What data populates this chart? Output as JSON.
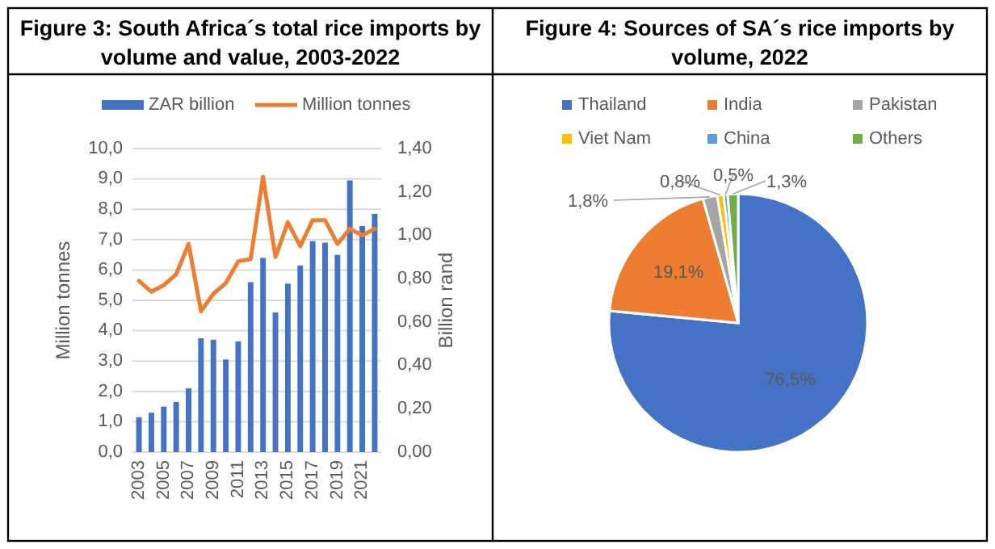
{
  "chart_data": [
    {
      "type": "bar",
      "title": "Figure 3: South Africa´s total rice imports by volume and value, 2003-2022",
      "categories": [
        "2003",
        null,
        "2005",
        null,
        "2007",
        null,
        "2009",
        null,
        "2011",
        null,
        "2013",
        null,
        "2015",
        null,
        "2017",
        null,
        "2019",
        null,
        "2021",
        null
      ],
      "series": [
        {
          "name": "ZAR billion",
          "type": "bar",
          "color": "#4472c4",
          "values": [
            1.15,
            1.3,
            1.5,
            1.65,
            2.1,
            3.75,
            3.7,
            3.05,
            3.65,
            5.6,
            6.4,
            4.6,
            5.55,
            6.15,
            6.95,
            6.9,
            6.5,
            8.95,
            7.45,
            7.85
          ]
        },
        {
          "name": "Million tonnes",
          "type": "line",
          "axis": "y2",
          "color": "#ed7d31",
          "values": [
            0.79,
            0.74,
            0.77,
            0.82,
            0.96,
            0.65,
            0.73,
            0.78,
            0.88,
            0.89,
            1.27,
            0.9,
            1.06,
            0.95,
            1.07,
            1.07,
            0.96,
            1.03,
            1.0,
            1.03
          ]
        }
      ],
      "ylabel": "Million tonnes",
      "y2label": "Billion rand",
      "ylim": [
        0,
        10
      ],
      "yticks": [
        {
          "value": 0,
          "label": "0,0"
        },
        {
          "value": 1,
          "label": "1,0"
        },
        {
          "value": 2,
          "label": "2,0"
        },
        {
          "value": 3,
          "label": "3,0"
        },
        {
          "value": 4,
          "label": "4,0"
        },
        {
          "value": 5,
          "label": "5,0"
        },
        {
          "value": 6,
          "label": "6,0"
        },
        {
          "value": 7,
          "label": "7,0"
        },
        {
          "value": 8,
          "label": "8,0"
        },
        {
          "value": 9,
          "label": "9,0"
        },
        {
          "value": 10,
          "label": "10,0"
        }
      ],
      "y2lim": [
        0,
        1.4
      ],
      "y2ticks": [
        {
          "value": 0,
          "label": "0,00"
        },
        {
          "value": 0.2,
          "label": "0,20"
        },
        {
          "value": 0.4,
          "label": "0,40"
        },
        {
          "value": 0.6,
          "label": "0,60"
        },
        {
          "value": 0.8,
          "label": "0,80"
        },
        {
          "value": 1.0,
          "label": "1,00"
        },
        {
          "value": 1.2,
          "label": "1,20"
        },
        {
          "value": 1.4,
          "label": "1,40"
        }
      ],
      "grid": "y",
      "legend": "top"
    },
    {
      "type": "pie",
      "title": "Figure 4: Sources of SA´s rice imports by volume, 2022",
      "categories": [
        "Thailand",
        "India",
        "Pakistan",
        "Viet Nam",
        "China",
        "Others"
      ],
      "values": [
        76.5,
        19.1,
        1.8,
        0.8,
        0.5,
        1.3
      ],
      "colors": [
        "#4472c4",
        "#ed7d31",
        "#a5a5a5",
        "#ffc000",
        "#5b9bd5",
        "#70ad47"
      ],
      "value_labels": [
        "76,5%",
        "19,1%",
        "1,8%",
        "0,8%",
        "0,5%",
        "1,3%"
      ],
      "legend": "top"
    }
  ]
}
